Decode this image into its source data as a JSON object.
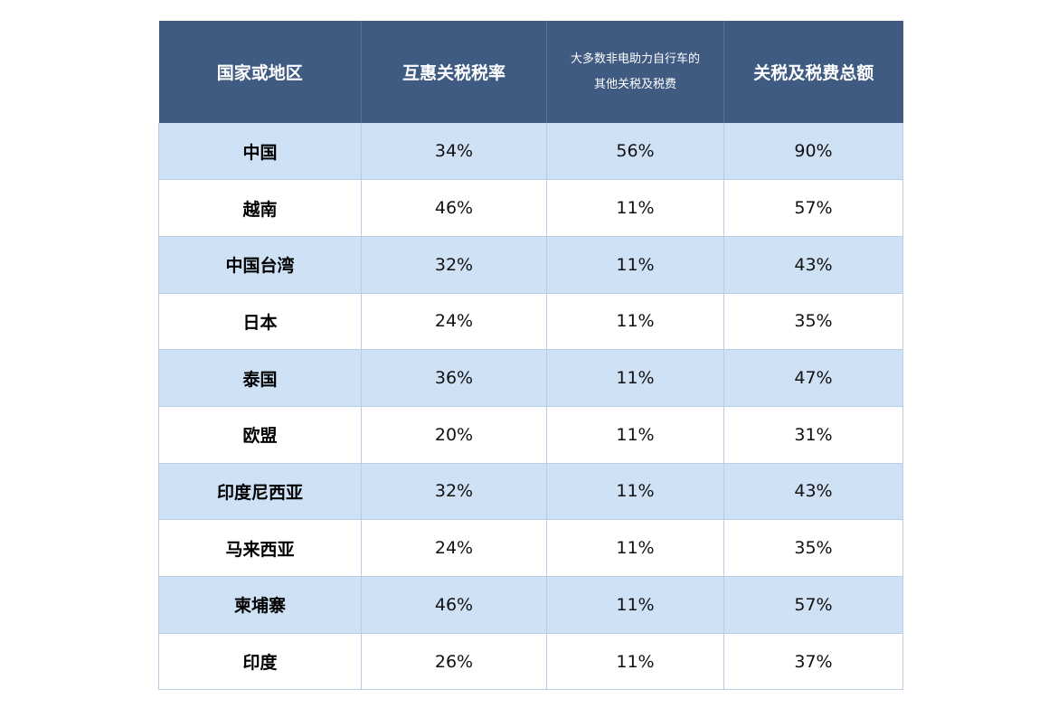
{
  "table": {
    "headers": {
      "region": "国家或地区",
      "reciprocal": "互惠关税税率",
      "other_line1": "大多数非电助力自行车的",
      "other_line2": "其他关税及税费",
      "total": "关税及税费总额"
    },
    "rows": [
      {
        "region": "中国",
        "reciprocal": "34%",
        "other": "56%",
        "total": "90%"
      },
      {
        "region": "越南",
        "reciprocal": "46%",
        "other": "11%",
        "total": "57%"
      },
      {
        "region": "中国台湾",
        "reciprocal": "32%",
        "other": "11%",
        "total": "43%"
      },
      {
        "region": "日本",
        "reciprocal": "24%",
        "other": "11%",
        "total": "35%"
      },
      {
        "region": "泰国",
        "reciprocal": "36%",
        "other": "11%",
        "total": "47%"
      },
      {
        "region": "欧盟",
        "reciprocal": "20%",
        "other": "11%",
        "total": "31%"
      },
      {
        "region": "印度尼西亚",
        "reciprocal": "32%",
        "other": "11%",
        "total": "43%"
      },
      {
        "region": "马来西亚",
        "reciprocal": "24%",
        "other": "11%",
        "total": "35%"
      },
      {
        "region": "柬埔寨",
        "reciprocal": "46%",
        "other": "11%",
        "total": "57%"
      },
      {
        "region": "印度",
        "reciprocal": "26%",
        "other": "11%",
        "total": "37%"
      }
    ]
  },
  "colors": {
    "header_bg": "#3f5b81",
    "row_shade": "#cfe1f5",
    "row_plain": "#ffffff"
  }
}
